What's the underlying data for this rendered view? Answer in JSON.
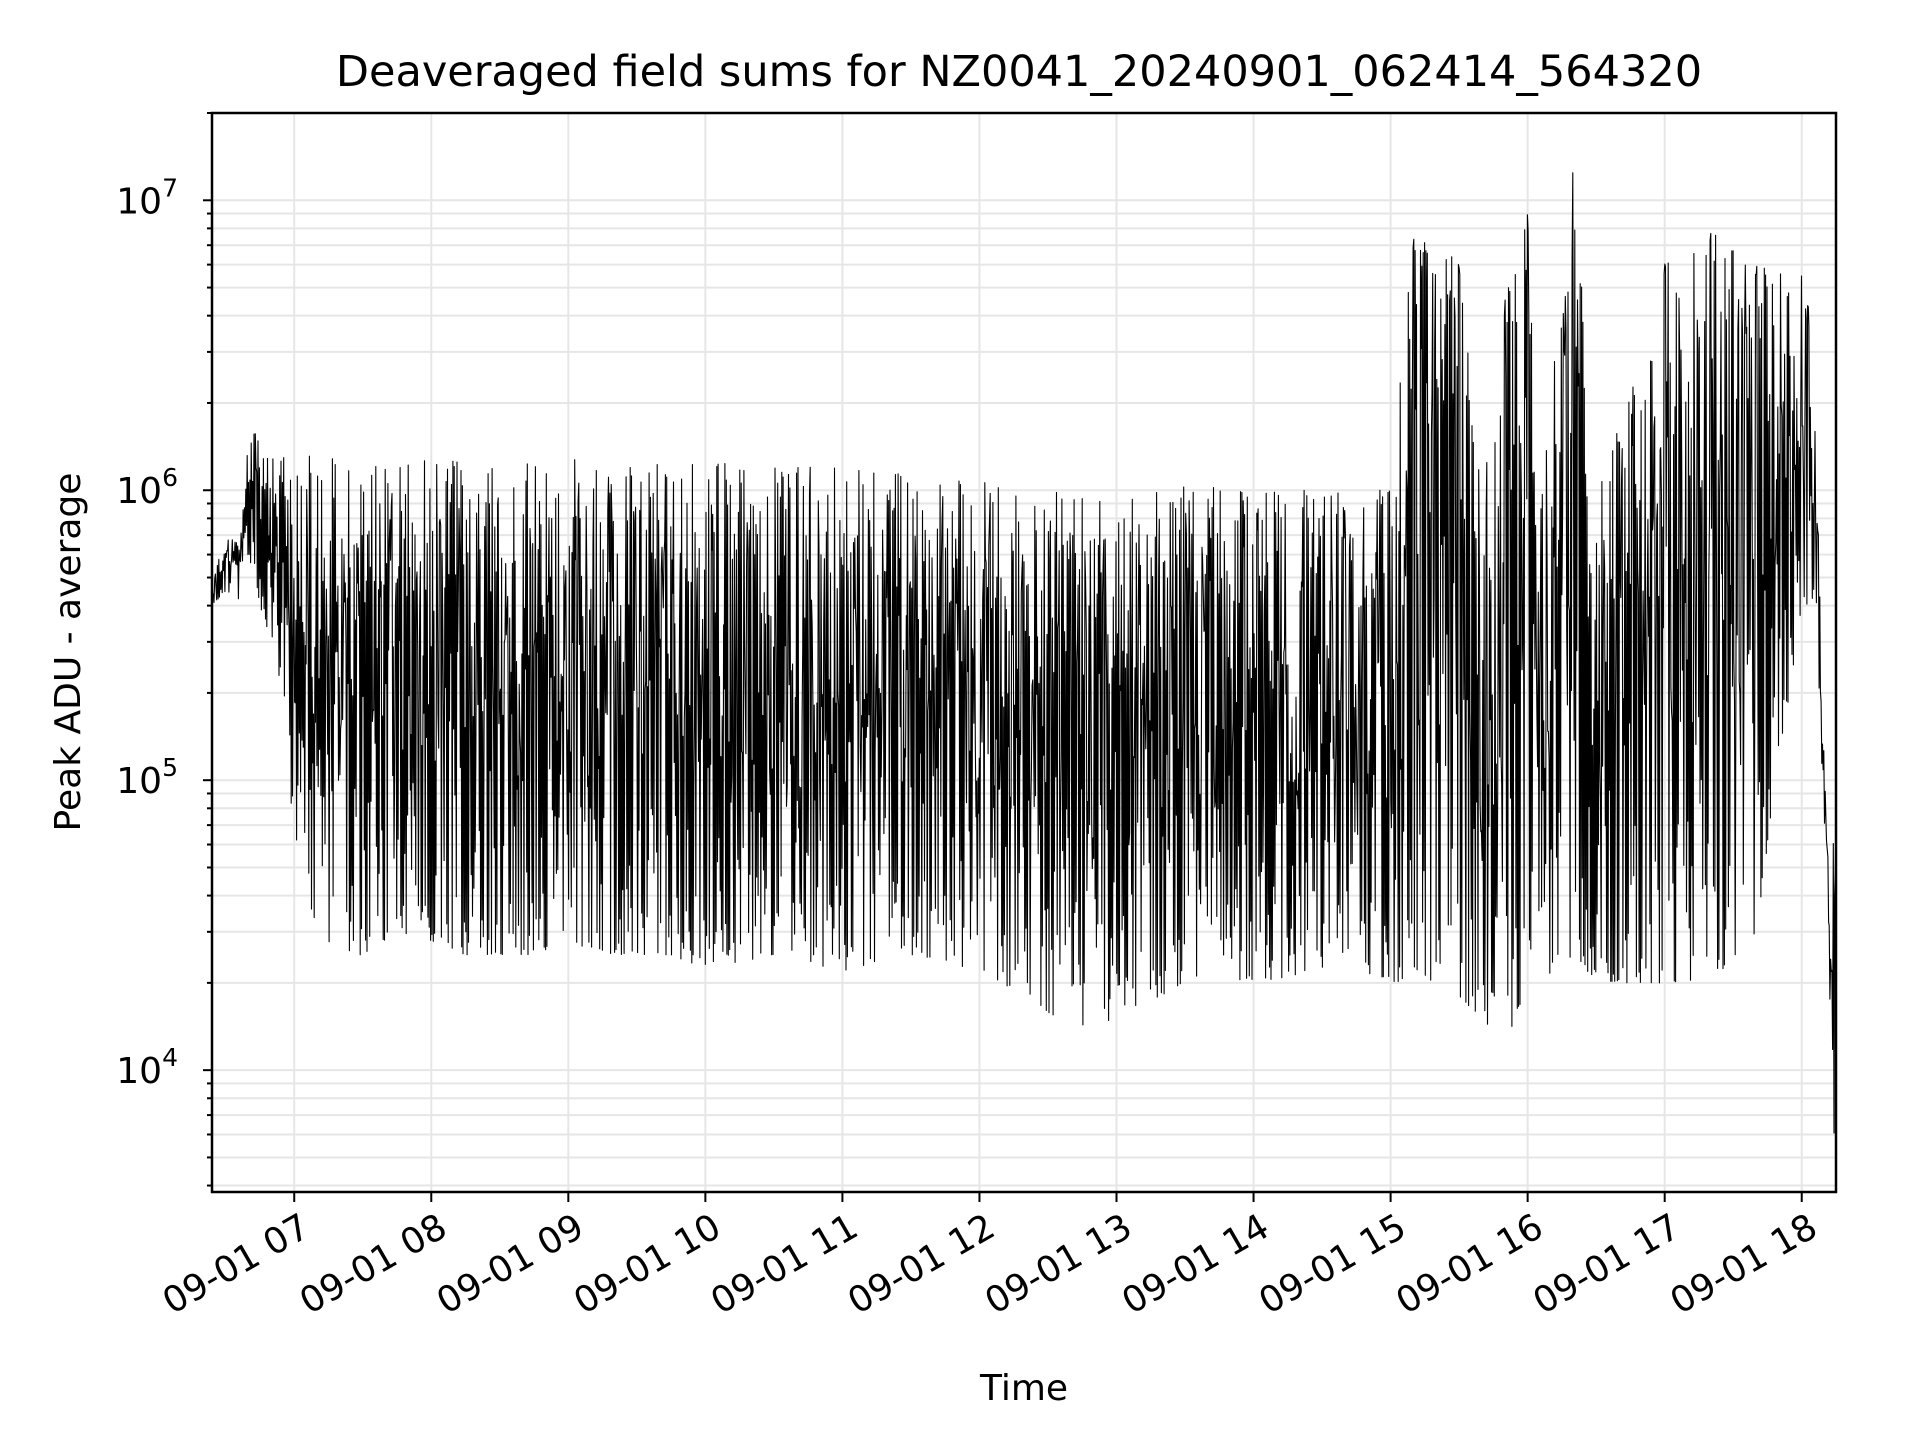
{
  "chart_data": {
    "type": "line",
    "title": "Deaveraged field sums for NZ0041_20240901_062414_564320",
    "xlabel": "Time",
    "ylabel": "Peak ADU - average",
    "y_scale": "log",
    "ylim": [
      3800,
      20000000
    ],
    "xlim": [
      "2024-09-01 06:24",
      "2024-09-01 18:15"
    ],
    "x_tick_labels": [
      "09-01 07",
      "09-01 08",
      "09-01 09",
      "09-01 10",
      "09-01 11",
      "09-01 12",
      "09-01 13",
      "09-01 14",
      "09-01 15",
      "09-01 16",
      "09-01 17",
      "09-01 18"
    ],
    "y_tick_labels": [
      {
        "base": "10",
        "exp": "4",
        "value": 10000
      },
      {
        "base": "10",
        "exp": "5",
        "value": 100000
      },
      {
        "base": "10",
        "exp": "6",
        "value": 1000000
      },
      {
        "base": "10",
        "exp": "7",
        "value": 10000000
      }
    ],
    "grid": true,
    "legend": "none",
    "line_color": "#000000",
    "series": [
      {
        "x": [
          "2024-09-01 06:24",
          "2024-09-01 06:30",
          "2024-09-01 06:36",
          "2024-09-01 06:40",
          "2024-09-01 06:45",
          "2024-09-01 06:50",
          "2024-09-01 06:55",
          "2024-09-01 07:00",
          "2024-09-01 07:05",
          "2024-09-01 07:10",
          "2024-09-01 07:20",
          "2024-09-01 07:30",
          "2024-09-01 07:45",
          "2024-09-01 08:00",
          "2024-09-01 08:15",
          "2024-09-01 08:30",
          "2024-09-01 08:45",
          "2024-09-01 09:00",
          "2024-09-01 09:15",
          "2024-09-01 09:30",
          "2024-09-01 09:45",
          "2024-09-01 10:00",
          "2024-09-01 10:30",
          "2024-09-01 11:00",
          "2024-09-01 11:30",
          "2024-09-01 12:00",
          "2024-09-01 12:20",
          "2024-09-01 12:40",
          "2024-09-01 13:00",
          "2024-09-01 13:30",
          "2024-09-01 14:00",
          "2024-09-01 14:30",
          "2024-09-01 15:00",
          "2024-09-01 15:10",
          "2024-09-01 15:30",
          "2024-09-01 15:40",
          "2024-09-01 15:50",
          "2024-09-01 16:00",
          "2024-09-01 16:05",
          "2024-09-01 16:20",
          "2024-09-01 16:30",
          "2024-09-01 17:00",
          "2024-09-01 17:20",
          "2024-09-01 17:40",
          "2024-09-01 18:00",
          "2024-09-01 18:03",
          "2024-09-01 18:06",
          "2024-09-01 18:10",
          "2024-09-01 18:14"
        ],
        "upper": [
          480000,
          700000,
          650000,
          1500000,
          1650000,
          1400000,
          1350000,
          1300000,
          1350000,
          1300000,
          1300000,
          1250000,
          1200000,
          1300000,
          1250000,
          1200000,
          1250000,
          1300000,
          1200000,
          1200000,
          1250000,
          1250000,
          1200000,
          1200000,
          1150000,
          1100000,
          950000,
          1000000,
          900000,
          1050000,
          1000000,
          1000000,
          1000000,
          7600000,
          6200000,
          950000,
          4600000,
          9000000,
          950000,
          13000000,
          1000000,
          6100000,
          7800000,
          6000000,
          5500000,
          4300000,
          1800000,
          100000,
          80000
        ],
        "lower": [
          400000,
          450000,
          420000,
          600000,
          400000,
          300000,
          200000,
          60000,
          40000,
          30000,
          25000,
          25000,
          30000,
          28000,
          25000,
          25000,
          25000,
          28000,
          25000,
          25000,
          25000,
          22000,
          25000,
          22000,
          25000,
          22000,
          18000,
          14000,
          15000,
          20000,
          20000,
          22000,
          20000,
          20000,
          18000,
          15000,
          12000,
          20000,
          20000,
          25000,
          20000,
          20000,
          20000,
          30000,
          400000,
          400000,
          400000,
          65000,
          5000
        ]
      }
    ]
  }
}
